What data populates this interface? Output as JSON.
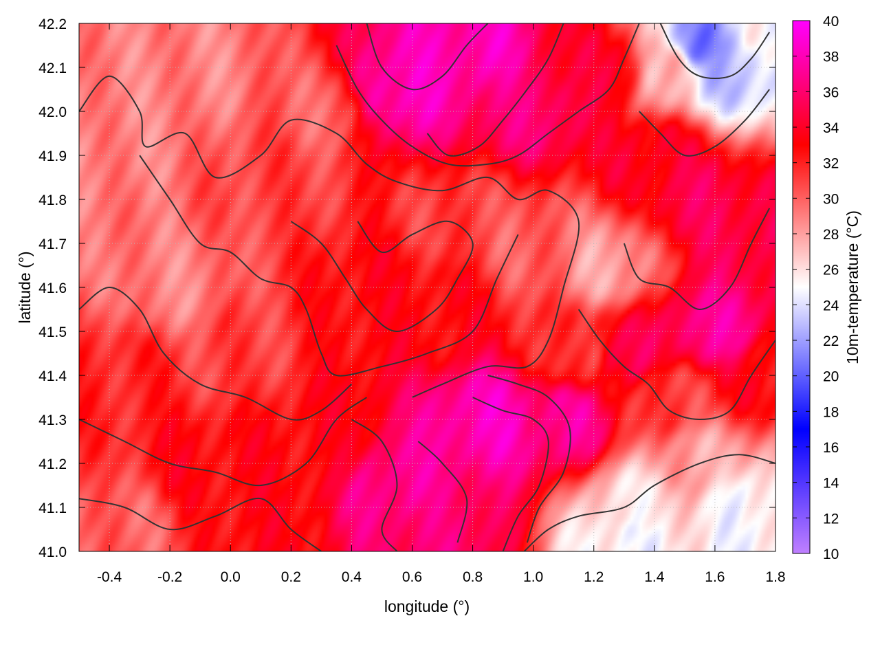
{
  "chart_data": {
    "type": "heatmap",
    "title": "",
    "xlabel": "longitude (°)",
    "ylabel": "latitude (°)",
    "colorbar_label": "10m-temperature (°C)",
    "xlim": [
      -0.5,
      1.8
    ],
    "ylim": [
      41.0,
      42.2
    ],
    "x_ticks": [
      "-0.4",
      "-0.2",
      "0.0",
      "0.2",
      "0.4",
      "0.6",
      "0.8",
      "1.0",
      "1.2",
      "1.4",
      "1.6",
      "1.8"
    ],
    "y_ticks": [
      "41.0",
      "41.1",
      "41.2",
      "41.3",
      "41.4",
      "41.5",
      "41.6",
      "41.7",
      "41.8",
      "41.9",
      "42.0",
      "42.1",
      "42.2"
    ],
    "colorbar_range": [
      10,
      40
    ],
    "colorbar_ticks": [
      "10",
      "12",
      "14",
      "16",
      "18",
      "20",
      "22",
      "24",
      "26",
      "28",
      "30",
      "32",
      "34",
      "36",
      "38",
      "40"
    ],
    "colormap": [
      {
        "value": 10,
        "color": "#c080ff"
      },
      {
        "value": 17,
        "color": "#0000ff"
      },
      {
        "value": 25,
        "color": "#ffffff"
      },
      {
        "value": 33,
        "color": "#ff0000"
      },
      {
        "value": 40,
        "color": "#ff00ff"
      }
    ],
    "contour_color": "#333333",
    "grid": true,
    "field_regions": [
      {
        "lon": -0.35,
        "lat": 41.95,
        "temp": 29
      },
      {
        "lon": -0.1,
        "lat": 42.1,
        "temp": 29
      },
      {
        "lon": 0.3,
        "lat": 42.0,
        "temp": 30
      },
      {
        "lon": 0.15,
        "lat": 41.85,
        "temp": 31
      },
      {
        "lon": -0.2,
        "lat": 41.6,
        "temp": 29
      },
      {
        "lon": -0.35,
        "lat": 41.4,
        "temp": 32
      },
      {
        "lon": 0.0,
        "lat": 41.45,
        "temp": 31
      },
      {
        "lon": 0.5,
        "lat": 41.6,
        "temp": 33
      },
      {
        "lon": 0.7,
        "lat": 41.55,
        "temp": 33
      },
      {
        "lon": 0.75,
        "lat": 41.75,
        "temp": 31
      },
      {
        "lon": 1.0,
        "lat": 41.7,
        "temp": 30
      },
      {
        "lon": 1.25,
        "lat": 41.65,
        "temp": 28
      },
      {
        "lon": 0.3,
        "lat": 41.25,
        "temp": 33
      },
      {
        "lon": -0.1,
        "lat": 41.2,
        "temp": 33
      },
      {
        "lon": 0.1,
        "lat": 41.05,
        "temp": 33
      },
      {
        "lon": -0.35,
        "lat": 41.05,
        "temp": 30
      },
      {
        "lon": 0.55,
        "lat": 41.15,
        "temp": 37
      },
      {
        "lon": 0.7,
        "lat": 41.05,
        "temp": 36
      },
      {
        "lon": 0.85,
        "lat": 41.3,
        "temp": 38
      },
      {
        "lon": 1.1,
        "lat": 41.3,
        "temp": 37
      },
      {
        "lon": 0.55,
        "lat": 42.05,
        "temp": 38
      },
      {
        "lon": 0.8,
        "lat": 42.15,
        "temp": 38
      },
      {
        "lon": 1.0,
        "lat": 42.0,
        "temp": 36
      },
      {
        "lon": 1.25,
        "lat": 42.1,
        "temp": 34
      },
      {
        "lon": 1.4,
        "lat": 41.9,
        "temp": 34
      },
      {
        "lon": 1.55,
        "lat": 41.8,
        "temp": 35
      },
      {
        "lon": 1.6,
        "lat": 41.5,
        "temp": 37
      },
      {
        "lon": 1.75,
        "lat": 41.7,
        "temp": 35
      },
      {
        "lon": 1.75,
        "lat": 41.4,
        "temp": 33
      },
      {
        "lon": 1.45,
        "lat": 41.35,
        "temp": 31
      },
      {
        "lon": 1.3,
        "lat": 41.45,
        "temp": 35
      },
      {
        "lon": 1.15,
        "lat": 41.45,
        "temp": 31
      },
      {
        "lon": 1.55,
        "lat": 41.2,
        "temp": 28
      },
      {
        "lon": 1.35,
        "lat": 41.1,
        "temp": 26
      },
      {
        "lon": 1.3,
        "lat": 41.02,
        "temp": 25
      },
      {
        "lon": 1.7,
        "lat": 41.1,
        "temp": 25
      },
      {
        "lon": 1.75,
        "lat": 41.03,
        "temp": 25
      },
      {
        "lon": 1.55,
        "lat": 42.15,
        "temp": 21
      },
      {
        "lon": 1.65,
        "lat": 42.1,
        "temp": 23
      },
      {
        "lon": 1.45,
        "lat": 42.1,
        "temp": 27
      },
      {
        "lon": 1.78,
        "lat": 42.18,
        "temp": 25
      }
    ],
    "contours": [
      {
        "level": 30,
        "points": [
          [
            -0.5,
            42.0
          ],
          [
            -0.4,
            42.08
          ],
          [
            -0.3,
            42.0
          ],
          [
            -0.28,
            41.92
          ],
          [
            -0.15,
            41.95
          ],
          [
            -0.05,
            41.85
          ],
          [
            0.1,
            41.9
          ],
          [
            0.2,
            41.98
          ],
          [
            0.35,
            41.95
          ],
          [
            0.45,
            41.88
          ],
          [
            0.55,
            41.84
          ],
          [
            0.7,
            41.82
          ],
          [
            0.85,
            41.85
          ],
          [
            0.95,
            41.8
          ],
          [
            1.05,
            41.82
          ],
          [
            1.15,
            41.75
          ],
          [
            1.1,
            41.6
          ],
          [
            1.05,
            41.48
          ],
          [
            0.98,
            41.42
          ],
          [
            0.85,
            41.42
          ],
          [
            0.7,
            41.38
          ],
          [
            0.6,
            41.35
          ]
        ]
      },
      {
        "level": 32,
        "points": [
          [
            -0.3,
            41.9
          ],
          [
            -0.2,
            41.8
          ],
          [
            -0.1,
            41.7
          ],
          [
            0.0,
            41.68
          ],
          [
            0.1,
            41.62
          ],
          [
            0.2,
            41.6
          ],
          [
            0.25,
            41.55
          ],
          [
            0.3,
            41.45
          ],
          [
            0.35,
            41.4
          ],
          [
            0.5,
            41.42
          ],
          [
            0.65,
            41.45
          ],
          [
            0.8,
            41.5
          ],
          [
            0.88,
            41.62
          ],
          [
            0.95,
            41.72
          ]
        ]
      },
      {
        "level": 34,
        "points": [
          [
            0.2,
            41.75
          ],
          [
            0.3,
            41.7
          ],
          [
            0.38,
            41.62
          ],
          [
            0.45,
            41.55
          ],
          [
            0.55,
            41.5
          ],
          [
            0.68,
            41.55
          ],
          [
            0.75,
            41.62
          ],
          [
            0.8,
            41.7
          ],
          [
            0.72,
            41.75
          ],
          [
            0.6,
            41.72
          ],
          [
            0.5,
            41.68
          ],
          [
            0.42,
            41.75
          ]
        ]
      },
      {
        "level": 30,
        "points": [
          [
            -0.5,
            41.55
          ],
          [
            -0.4,
            41.6
          ],
          [
            -0.3,
            41.55
          ],
          [
            -0.22,
            41.45
          ],
          [
            -0.1,
            41.38
          ],
          [
            0.05,
            41.35
          ],
          [
            0.2,
            41.3
          ],
          [
            0.3,
            41.32
          ],
          [
            0.4,
            41.38
          ]
        ]
      },
      {
        "level": 32,
        "points": [
          [
            -0.5,
            41.3
          ],
          [
            -0.35,
            41.25
          ],
          [
            -0.2,
            41.2
          ],
          [
            -0.05,
            41.18
          ],
          [
            0.1,
            41.15
          ],
          [
            0.25,
            41.2
          ],
          [
            0.35,
            41.3
          ],
          [
            0.45,
            41.35
          ]
        ]
      },
      {
        "level": 34,
        "points": [
          [
            -0.5,
            41.12
          ],
          [
            -0.35,
            41.1
          ],
          [
            -0.2,
            41.05
          ],
          [
            -0.05,
            41.08
          ],
          [
            0.1,
            41.12
          ],
          [
            0.2,
            41.05
          ],
          [
            0.3,
            41.0
          ]
        ]
      },
      {
        "level": 36,
        "points": [
          [
            0.4,
            41.3
          ],
          [
            0.5,
            41.25
          ],
          [
            0.55,
            41.15
          ],
          [
            0.5,
            41.05
          ],
          [
            0.55,
            41.0
          ]
        ]
      },
      {
        "level": 36,
        "points": [
          [
            0.62,
            41.25
          ],
          [
            0.7,
            41.2
          ],
          [
            0.78,
            41.12
          ],
          [
            0.75,
            41.02
          ]
        ]
      },
      {
        "level": 36,
        "points": [
          [
            0.8,
            41.35
          ],
          [
            0.9,
            41.32
          ],
          [
            1.0,
            41.3
          ],
          [
            1.05,
            41.25
          ],
          [
            1.02,
            41.15
          ],
          [
            0.95,
            41.08
          ],
          [
            0.9,
            41.0
          ]
        ]
      },
      {
        "level": 34,
        "points": [
          [
            0.85,
            41.4
          ],
          [
            0.95,
            41.38
          ],
          [
            1.05,
            41.35
          ],
          [
            1.12,
            41.28
          ],
          [
            1.1,
            41.18
          ],
          [
            1.02,
            41.1
          ],
          [
            0.98,
            41.02
          ]
        ]
      },
      {
        "level": 26,
        "points": [
          [
            0.97,
            41.0
          ],
          [
            1.05,
            41.05
          ],
          [
            1.15,
            41.08
          ],
          [
            1.3,
            41.1
          ],
          [
            1.4,
            41.15
          ],
          [
            1.55,
            41.2
          ],
          [
            1.68,
            41.22
          ],
          [
            1.8,
            41.2
          ]
        ]
      },
      {
        "level": 32,
        "points": [
          [
            1.15,
            41.55
          ],
          [
            1.22,
            41.48
          ],
          [
            1.3,
            41.42
          ],
          [
            1.38,
            41.38
          ],
          [
            1.45,
            41.32
          ],
          [
            1.55,
            41.3
          ],
          [
            1.65,
            41.32
          ],
          [
            1.72,
            41.4
          ],
          [
            1.8,
            41.48
          ]
        ]
      },
      {
        "level": 34,
        "points": [
          [
            1.3,
            41.7
          ],
          [
            1.35,
            41.62
          ],
          [
            1.45,
            41.6
          ],
          [
            1.55,
            41.55
          ],
          [
            1.65,
            41.6
          ],
          [
            1.72,
            41.7
          ],
          [
            1.78,
            41.78
          ]
        ]
      },
      {
        "level": 36,
        "points": [
          [
            0.45,
            42.2
          ],
          [
            0.5,
            42.1
          ],
          [
            0.6,
            42.05
          ],
          [
            0.7,
            42.08
          ],
          [
            0.78,
            42.15
          ],
          [
            0.85,
            42.2
          ]
        ]
      },
      {
        "level": 36,
        "points": [
          [
            0.65,
            41.95
          ],
          [
            0.72,
            41.9
          ],
          [
            0.82,
            41.92
          ],
          [
            0.9,
            41.98
          ],
          [
            0.98,
            42.05
          ],
          [
            1.05,
            42.12
          ],
          [
            1.1,
            42.2
          ]
        ]
      },
      {
        "level": 34,
        "points": [
          [
            0.35,
            42.15
          ],
          [
            0.42,
            42.05
          ],
          [
            0.5,
            41.98
          ],
          [
            0.6,
            41.92
          ],
          [
            0.72,
            41.88
          ],
          [
            0.85,
            41.88
          ],
          [
            0.95,
            41.9
          ],
          [
            1.05,
            41.95
          ],
          [
            1.15,
            42.0
          ],
          [
            1.25,
            42.05
          ],
          [
            1.3,
            42.12
          ],
          [
            1.35,
            42.2
          ]
        ]
      },
      {
        "level": 32,
        "points": [
          [
            1.35,
            42.0
          ],
          [
            1.42,
            41.95
          ],
          [
            1.5,
            41.9
          ],
          [
            1.6,
            41.92
          ],
          [
            1.7,
            41.98
          ],
          [
            1.78,
            42.05
          ]
        ]
      },
      {
        "level": 28,
        "points": [
          [
            1.42,
            42.2
          ],
          [
            1.48,
            42.12
          ],
          [
            1.55,
            42.08
          ],
          [
            1.65,
            42.08
          ],
          [
            1.72,
            42.12
          ],
          [
            1.78,
            42.18
          ]
        ]
      }
    ]
  }
}
